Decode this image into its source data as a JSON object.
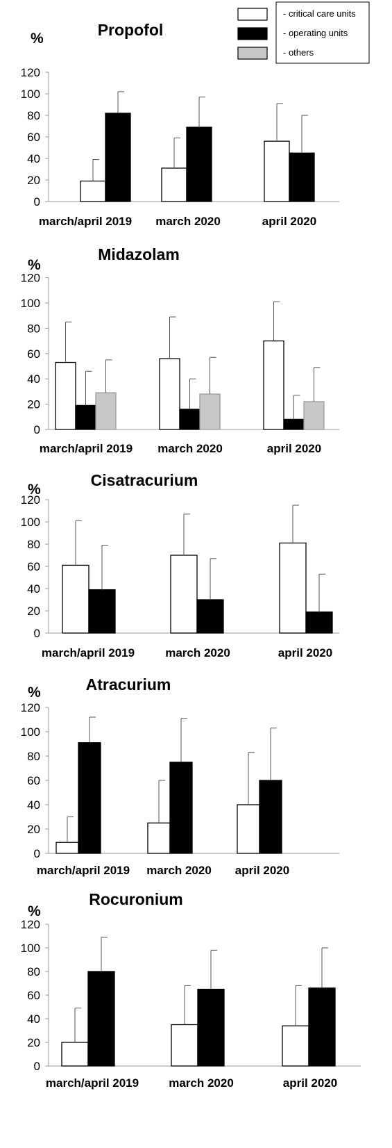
{
  "legend": {
    "entries": [
      {
        "label": "- critical care units",
        "color": "#ffffff"
      },
      {
        "label": "- operating units",
        "color": "#000000"
      },
      {
        "label": "- others",
        "color": "#c8c8c8"
      }
    ]
  },
  "chart_data": [
    {
      "type": "bar",
      "title": "Propofol",
      "ylabel": "%",
      "ylim": [
        0,
        120
      ],
      "yticks": [
        "0",
        "20",
        "40",
        "60",
        "80",
        "100",
        "120"
      ],
      "categories": [
        "march/april 2019",
        "march 2020",
        "april 2020"
      ],
      "series": [
        {
          "name": "critical care units",
          "values": [
            19,
            31,
            56
          ],
          "errors": [
            20,
            28,
            35
          ]
        },
        {
          "name": "operating units",
          "values": [
            82,
            69,
            45
          ],
          "errors": [
            20,
            28,
            35
          ]
        }
      ]
    },
    {
      "type": "bar",
      "title": "Midazolam",
      "ylabel": "%",
      "ylim": [
        0,
        120
      ],
      "yticks": [
        "0",
        "20",
        "40",
        "60",
        "80",
        "100",
        "120"
      ],
      "categories": [
        "march/april 2019",
        "march 2020",
        "april 2020"
      ],
      "series": [
        {
          "name": "critical care units",
          "values": [
            53,
            56,
            70
          ],
          "errors": [
            32,
            33,
            31
          ]
        },
        {
          "name": "operating units",
          "values": [
            19,
            16,
            8
          ],
          "errors": [
            27,
            24,
            19
          ]
        },
        {
          "name": "others",
          "values": [
            29,
            28,
            22
          ],
          "errors": [
            26,
            29,
            27
          ]
        }
      ]
    },
    {
      "type": "bar",
      "title": "Cisatracurium",
      "ylabel": "%",
      "ylim": [
        0,
        120
      ],
      "yticks": [
        "0",
        "20",
        "40",
        "60",
        "80",
        "100",
        "120"
      ],
      "categories": [
        "march/april 2019",
        "march 2020",
        "april 2020"
      ],
      "series": [
        {
          "name": "critical care units",
          "values": [
            61,
            70,
            81
          ],
          "errors": [
            40,
            37,
            34
          ]
        },
        {
          "name": "operating units",
          "values": [
            39,
            30,
            19
          ],
          "errors": [
            40,
            37,
            34
          ]
        }
      ]
    },
    {
      "type": "bar",
      "title": "Atracurium",
      "ylabel": "%",
      "ylim": [
        0,
        120
      ],
      "yticks": [
        "0",
        "20",
        "40",
        "60",
        "80",
        "100",
        "120"
      ],
      "categories": [
        "march/april 2019",
        "march 2020",
        "april 2020"
      ],
      "series": [
        {
          "name": "critical care units",
          "values": [
            9,
            25,
            40
          ],
          "errors": [
            21,
            35,
            43
          ]
        },
        {
          "name": "operating units",
          "values": [
            91,
            75,
            60
          ],
          "errors": [
            21,
            36,
            43
          ]
        }
      ]
    },
    {
      "type": "bar",
      "title": "Rocuronium",
      "ylabel": "%",
      "ylim": [
        0,
        120
      ],
      "yticks": [
        "0",
        "20",
        "40",
        "60",
        "80",
        "100",
        "120"
      ],
      "categories": [
        "march/april 2019",
        "march 2020",
        "april 2020"
      ],
      "series": [
        {
          "name": "critical care units",
          "values": [
            20,
            35,
            34
          ],
          "errors": [
            29,
            33,
            34
          ]
        },
        {
          "name": "operating units",
          "values": [
            80,
            65,
            66
          ],
          "errors": [
            29,
            33,
            34
          ]
        }
      ]
    }
  ]
}
